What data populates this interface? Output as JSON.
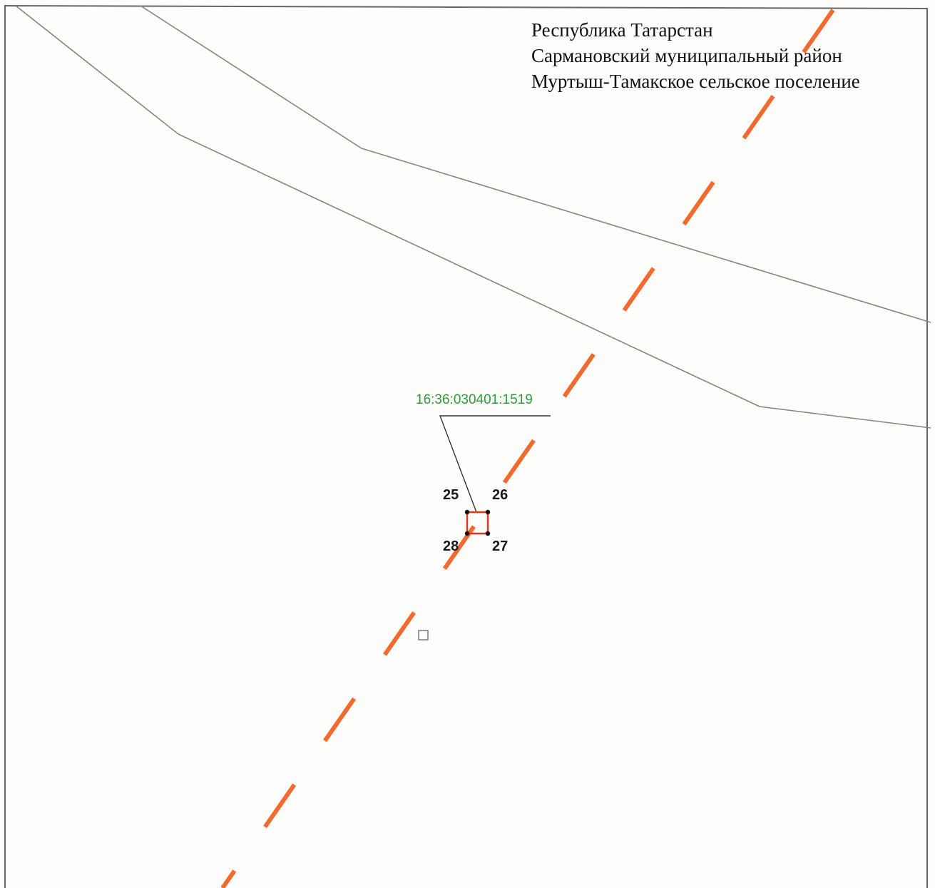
{
  "header": {
    "line1": "Республика Татарстан",
    "line2": "Сармановский муниципальный район",
    "line3": "Муртыш-Тамакское сельское поселение"
  },
  "parcel": {
    "cadastral_number": "16:36:030401:1519",
    "points": [
      "25",
      "26",
      "27",
      "28"
    ]
  },
  "colors": {
    "boundary_dash": "#f26a2e",
    "parcel_outline": "#e8341c",
    "road_lines": "#8a8478",
    "parcel_label": "#2e9b3a",
    "frame": "#555555"
  }
}
